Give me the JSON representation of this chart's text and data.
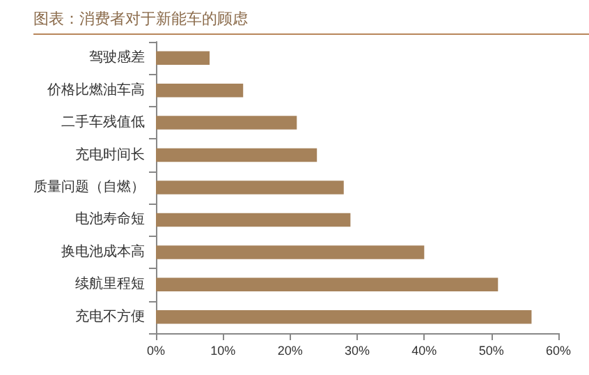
{
  "chart_data": {
    "type": "bar",
    "orientation": "horizontal",
    "title": "图表：消费者对于新能车的顾虑",
    "categories": [
      "驾驶感差",
      "价格比燃油车高",
      "二手车残值低",
      "充电时间长",
      "质量问题（自燃）",
      "电池寿命短",
      "换电池成本高",
      "续航里程短",
      "充电不方便"
    ],
    "values": [
      8,
      13,
      21,
      24,
      28,
      29,
      40,
      51,
      56
    ],
    "color": "#a6825a",
    "xlim": [
      0,
      60
    ],
    "xticks": [
      {
        "value": 0,
        "label": "0%"
      },
      {
        "value": 10,
        "label": "10%"
      },
      {
        "value": 20,
        "label": "20%"
      },
      {
        "value": 30,
        "label": "30%"
      },
      {
        "value": 40,
        "label": "40%"
      },
      {
        "value": 50,
        "label": "50%"
      },
      {
        "value": 60,
        "label": "60%"
      }
    ],
    "grid": false
  }
}
